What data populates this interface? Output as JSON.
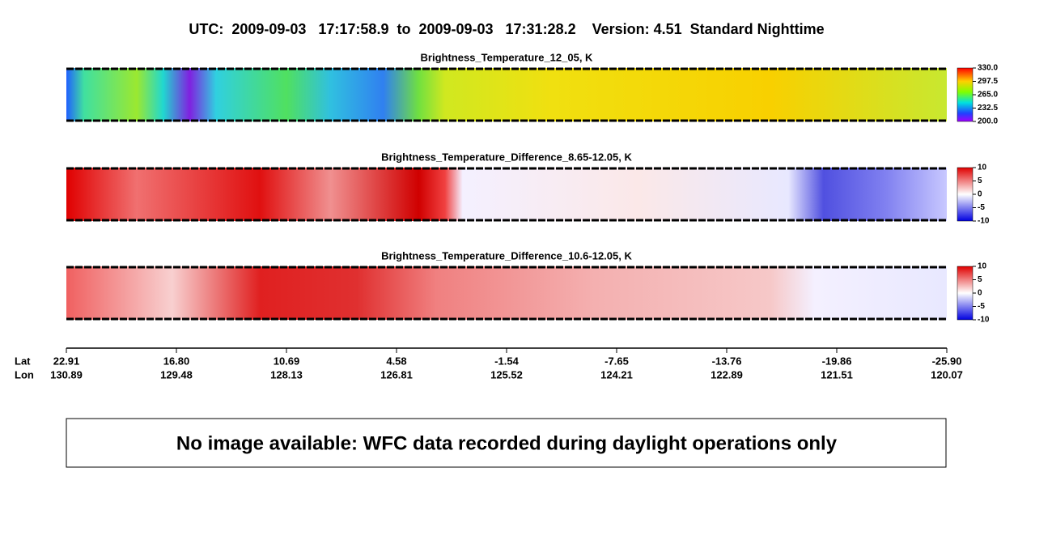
{
  "title": "UTC:  2009-09-03   17:17:58.9  to  2009-09-03   17:31:28.2    Version: 4.51  Standard Nighttime",
  "panels": [
    {
      "title": "Brightness_Temperature_12_05, K",
      "colorbar_ticks": [
        "330.0",
        "297.5",
        "265.0",
        "232.5",
        "200.0"
      ]
    },
    {
      "title": "Brightness_Temperature_Difference_8.65-12.05, K",
      "colorbar_ticks": [
        "10",
        "5",
        "0",
        "-5",
        "-10"
      ]
    },
    {
      "title": "Brightness_Temperature_Difference_10.6-12.05, K",
      "colorbar_ticks": [
        "10",
        "5",
        "0",
        "-5",
        "-10"
      ]
    }
  ],
  "x_axis": {
    "lat_label": "Lat",
    "lon_label": "Lon",
    "lat": [
      "22.91",
      "16.80",
      "10.69",
      "4.58",
      "-1.54",
      "-7.65",
      "-13.76",
      "-19.86",
      "-25.90"
    ],
    "lon": [
      "130.89",
      "129.48",
      "128.13",
      "126.81",
      "125.52",
      "124.21",
      "122.89",
      "121.51",
      "120.07"
    ]
  },
  "message": "No image available: WFC data recorded during daylight operations only"
}
